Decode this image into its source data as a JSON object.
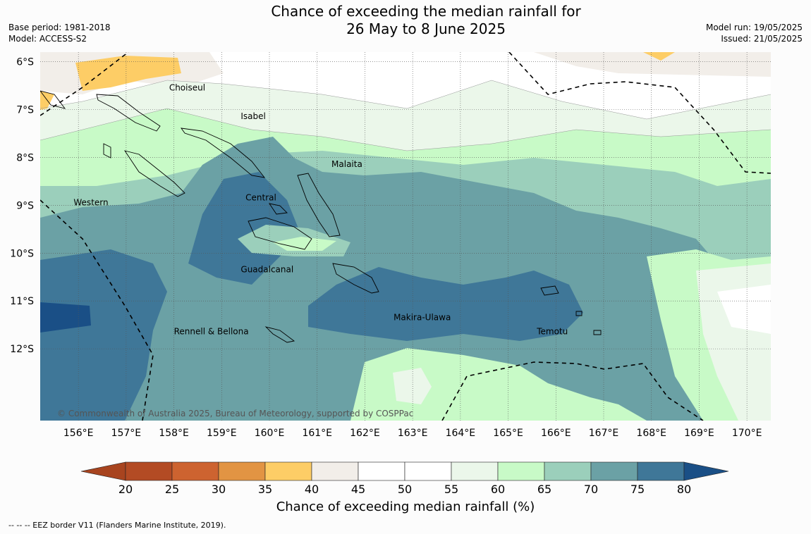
{
  "title": {
    "line1": "Chance of exceeding the median rainfall for",
    "line2": "26 May to 8 June 2025"
  },
  "meta_left": {
    "base_period": "Base period: 1981-2018",
    "model": "Model: ACCESS-S2"
  },
  "meta_right": {
    "model_run": "Model run: 19/05/2025",
    "issued": "Issued: 21/05/2025"
  },
  "map": {
    "lon_range": [
      155.2,
      170.5
    ],
    "lat_range": [
      -13.5,
      -5.8
    ],
    "lat_labels": [
      "6°S",
      "7°S",
      "8°S",
      "9°S",
      "10°S",
      "11°S",
      "12°S"
    ],
    "lon_labels": [
      "156°E",
      "157°E",
      "158°E",
      "159°E",
      "160°E",
      "161°E",
      "162°E",
      "163°E",
      "164°E",
      "165°E",
      "166°E",
      "167°E",
      "168°E",
      "169°E",
      "170°E"
    ],
    "regions": [
      {
        "name": "Choiseul",
        "lon": 157.9,
        "lat": -6.6
      },
      {
        "name": "Isabel",
        "lon": 159.4,
        "lat": -7.2
      },
      {
        "name": "Malaita",
        "lon": 161.3,
        "lat": -8.2
      },
      {
        "name": "Western",
        "lon": 155.9,
        "lat": -9.0
      },
      {
        "name": "Central",
        "lon": 159.5,
        "lat": -8.9
      },
      {
        "name": "Guadalcanal",
        "lon": 159.4,
        "lat": -10.4
      },
      {
        "name": "Rennell & Bellona",
        "lon": 158.0,
        "lat": -11.7
      },
      {
        "name": "Makira-Ulawa",
        "lon": 162.6,
        "lat": -11.4
      },
      {
        "name": "Temotu",
        "lon": 165.6,
        "lat": -11.7
      }
    ],
    "copyright": "© Commonwealth of Australia 2025, Bureau of Meteorology, supported by COSPPac"
  },
  "colorbar": {
    "label": "Chance of exceeding median rainfall (%)",
    "ticks": [
      "20",
      "25",
      "30",
      "35",
      "40",
      "45",
      "50",
      "55",
      "60",
      "65",
      "70",
      "75",
      "80"
    ],
    "colors": [
      "#a8441f",
      "#b34b24",
      "#cd6330",
      "#e29443",
      "#fdcd66",
      "#f2eee9",
      "#ffffff",
      "#ffffff",
      "#ebf7ea",
      "#c8fac7",
      "#9bcfbb",
      "#6ba1a5",
      "#3f7798",
      "#1a4f86"
    ],
    "legend_levels": [
      {
        "min": 40,
        "max": 45,
        "color": "#f2eee9"
      },
      {
        "min": 55,
        "max": 60,
        "color": "#ebf7ea"
      },
      {
        "min": 60,
        "max": 65,
        "color": "#c8fac7"
      },
      {
        "min": 65,
        "max": 70,
        "color": "#9bcfbb"
      },
      {
        "min": 70,
        "max": 75,
        "color": "#6ba1a5"
      },
      {
        "min": 75,
        "max": 80,
        "color": "#3f7798"
      },
      {
        "min": 80,
        "max": 100,
        "color": "#1a4f86"
      },
      {
        "min": 35,
        "max": 40,
        "color": "#fdcd66"
      }
    ]
  },
  "footer": "--  --  -- EEZ border V11 (Flanders Marine Institute, 2019)."
}
